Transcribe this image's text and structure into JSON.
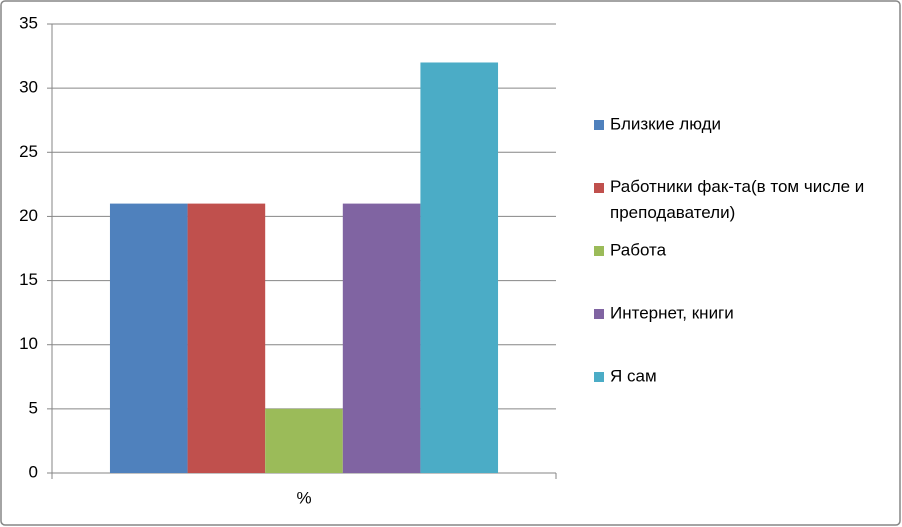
{
  "chart_data": {
    "type": "bar",
    "categories": [
      "%"
    ],
    "series": [
      {
        "name": "Близкие люди",
        "color": "#4f81bd",
        "values": [
          21
        ]
      },
      {
        "name": "Работники фак-та(в том числе и преподаватели)",
        "color": "#c0504d",
        "values": [
          21
        ]
      },
      {
        "name": "Работа",
        "color": "#9bbb59",
        "values": [
          5
        ]
      },
      {
        "name": "Интернет, книги",
        "color": "#8064a2",
        "values": [
          21
        ]
      },
      {
        "name": "Я сам",
        "color": "#4bacc6",
        "values": [
          32
        ]
      }
    ],
    "ylim": [
      0,
      35
    ],
    "yticks": [
      0,
      5,
      10,
      15,
      20,
      25,
      30,
      35
    ],
    "grid": true,
    "legend": "right"
  }
}
